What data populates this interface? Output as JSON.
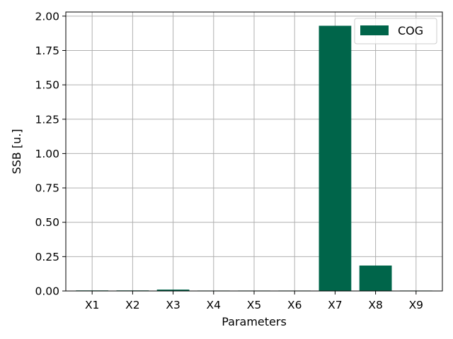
{
  "chart_data": {
    "type": "bar",
    "categories": [
      "X1",
      "X2",
      "X3",
      "X4",
      "X5",
      "X6",
      "X7",
      "X8",
      "X9"
    ],
    "series": [
      {
        "name": "COG",
        "values": [
          0.004,
          0.004,
          0.01,
          0.003,
          0.003,
          0.003,
          1.93,
          0.185,
          0.003
        ]
      }
    ],
    "xlabel": "Parameters",
    "ylabel": "SSB [u.]",
    "ylim": [
      0,
      2.03
    ],
    "yticks": [
      "0.00",
      "0.25",
      "0.50",
      "0.75",
      "1.00",
      "1.25",
      "1.50",
      "1.75",
      "2.00"
    ],
    "ytick_values": [
      0,
      0.25,
      0.5,
      0.75,
      1.0,
      1.25,
      1.5,
      1.75,
      2.0
    ],
    "grid": true,
    "legend_position": "top-right",
    "colors": {
      "bar": "#00654a",
      "grid": "#b0b0b0"
    }
  }
}
